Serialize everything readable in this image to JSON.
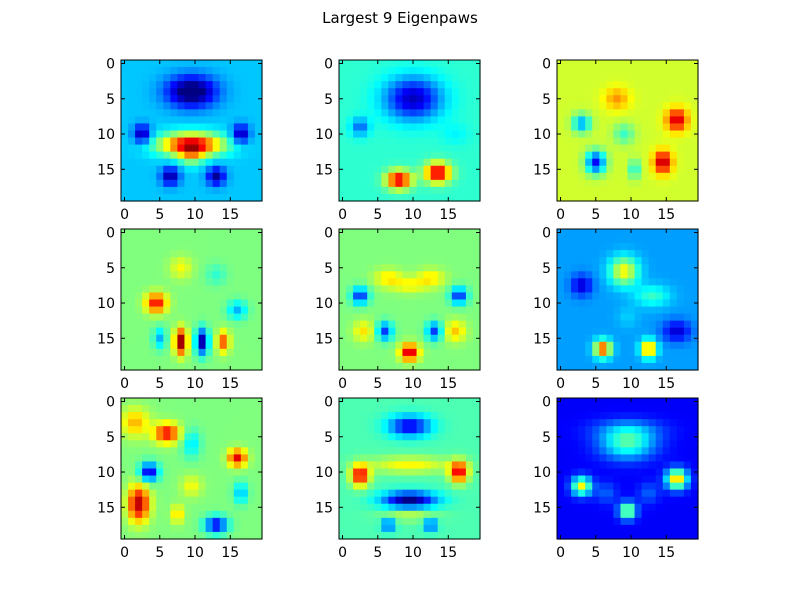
{
  "chart_data": {
    "type": "heatmap",
    "title": "Largest 9 Eigenpaws",
    "grid_rows": 3,
    "grid_cols": 3,
    "grid": false,
    "colormap": "jet",
    "image_size": [
      20,
      20
    ],
    "x_ticks": [
      0,
      5,
      10,
      15
    ],
    "y_ticks": [
      0,
      5,
      10,
      15
    ],
    "panels": [
      {
        "bg": 0.32,
        "blobs": [
          [
            9.5,
            4,
            3.5,
            2.2,
            -0.38
          ],
          [
            9.5,
            11.5,
            4.5,
            1.6,
            0.6
          ],
          [
            9.5,
            13,
            1.8,
            1.5,
            0.2
          ],
          [
            2.5,
            10,
            1.2,
            1.3,
            -0.3
          ],
          [
            16.5,
            10,
            1.2,
            1.3,
            -0.3
          ],
          [
            6.5,
            16,
            1.3,
            1.3,
            -0.3
          ],
          [
            13,
            16,
            1.3,
            1.3,
            -0.3
          ]
        ]
      },
      {
        "bg": 0.42,
        "blobs": [
          [
            10,
            5,
            4,
            3,
            -0.36
          ],
          [
            2.5,
            9,
            1.3,
            1.3,
            -0.2
          ],
          [
            8,
            16.5,
            1.8,
            1.3,
            0.5
          ],
          [
            13.5,
            15.5,
            1.8,
            1.4,
            0.52
          ],
          [
            16,
            10,
            2,
            1.5,
            -0.05
          ]
        ]
      },
      {
        "bg": 0.58,
        "blobs": [
          [
            8,
            5,
            1.8,
            1.6,
            0.15
          ],
          [
            16.5,
            8,
            1.5,
            1.6,
            0.35
          ],
          [
            5,
            14,
            1.4,
            1.6,
            -0.45
          ],
          [
            14.5,
            14,
            1.3,
            1.6,
            0.38
          ],
          [
            3,
            8.5,
            1.3,
            1.3,
            -0.3
          ],
          [
            10.5,
            15,
            0.8,
            1.4,
            -0.2
          ],
          [
            9,
            10,
            1.5,
            1.5,
            -0.15
          ]
        ]
      },
      {
        "bg": 0.5,
        "blobs": [
          [
            4.5,
            10,
            1.5,
            1.4,
            0.38
          ],
          [
            8,
            15.5,
            0.9,
            1.8,
            0.5
          ],
          [
            11,
            15.5,
            0.9,
            1.8,
            -0.48
          ],
          [
            14,
            15.5,
            0.9,
            1.5,
            0.3
          ],
          [
            5,
            15,
            0.9,
            1.5,
            -0.2
          ],
          [
            16,
            11,
            1.4,
            1.3,
            -0.2
          ],
          [
            8,
            5,
            1.6,
            1.6,
            0.12
          ],
          [
            13,
            6,
            1.5,
            1.5,
            -0.08
          ]
        ]
      },
      {
        "bg": 0.5,
        "blobs": [
          [
            6.5,
            6.5,
            2,
            1.3,
            0.15
          ],
          [
            12.5,
            6.5,
            2,
            1.3,
            0.15
          ],
          [
            9.5,
            7.5,
            2.2,
            1.1,
            0.12
          ],
          [
            2.5,
            9,
            1.2,
            1.2,
            -0.35
          ],
          [
            16.5,
            9,
            1.2,
            1.2,
            -0.35
          ],
          [
            9.5,
            17,
            1.3,
            1.2,
            0.45
          ],
          [
            6,
            14,
            1.1,
            1.3,
            -0.32
          ],
          [
            13,
            14,
            1.1,
            1.3,
            -0.32
          ],
          [
            3,
            14,
            1.5,
            1.5,
            0.15
          ],
          [
            16,
            14,
            1.5,
            1.5,
            0.18
          ]
        ]
      },
      {
        "bg": 0.28,
        "blobs": [
          [
            9,
            5.5,
            2,
            2,
            0.35
          ],
          [
            13,
            9,
            2.5,
            1.5,
            0.15
          ],
          [
            3,
            7.5,
            1.5,
            1.5,
            -0.2
          ],
          [
            16.5,
            14,
            2,
            1.5,
            -0.2
          ],
          [
            6,
            16.5,
            1.2,
            1.2,
            0.55
          ],
          [
            12.5,
            16.5,
            1.1,
            1.2,
            0.5
          ],
          [
            9.5,
            12,
            1.5,
            1.5,
            0.05
          ]
        ]
      },
      {
        "bg": 0.5,
        "blobs": [
          [
            1.5,
            3,
            2,
            2,
            0.2
          ],
          [
            6,
            4.5,
            1.8,
            1.4,
            0.38
          ],
          [
            9.5,
            6,
            1.3,
            2,
            -0.15
          ],
          [
            3.5,
            10,
            1.3,
            1.3,
            -0.42
          ],
          [
            16,
            8,
            1.3,
            1.2,
            0.4
          ],
          [
            2,
            14.5,
            1.5,
            2.5,
            0.45
          ],
          [
            7.5,
            16,
            0.9,
            1.3,
            0.18
          ],
          [
            13,
            17.5,
            1.6,
            1.2,
            -0.4
          ],
          [
            16.5,
            13,
            1,
            1.5,
            -0.2
          ],
          [
            9.5,
            12,
            1.5,
            1.5,
            0.12
          ]
        ]
      },
      {
        "bg": 0.45,
        "blobs": [
          [
            9.5,
            3.5,
            3,
            1.5,
            -0.35
          ],
          [
            9.5,
            9,
            6,
            1.2,
            0.18
          ],
          [
            2.5,
            10.5,
            1.3,
            1.5,
            0.45
          ],
          [
            16.5,
            10,
            1.3,
            1.5,
            0.45
          ],
          [
            9.5,
            14,
            3.8,
            1.2,
            -0.45
          ],
          [
            9.5,
            16,
            4,
            1,
            0.12
          ],
          [
            6.5,
            17.5,
            0.9,
            0.9,
            -0.3
          ],
          [
            12.5,
            17.5,
            0.9,
            0.9,
            -0.3
          ]
        ]
      },
      {
        "bg": 0.12,
        "blobs": [
          [
            9.5,
            6,
            3.8,
            2.2,
            0.32
          ],
          [
            9.5,
            4,
            5,
            1.5,
            0.12
          ],
          [
            3,
            12,
            1.4,
            1.3,
            0.5
          ],
          [
            16.5,
            11,
            1.5,
            1.4,
            0.58
          ],
          [
            9.5,
            15.5,
            1.2,
            1.2,
            0.45
          ],
          [
            6.5,
            13,
            1.5,
            1.5,
            0.1
          ],
          [
            12.5,
            13,
            1.5,
            1.5,
            0.1
          ]
        ]
      }
    ]
  }
}
